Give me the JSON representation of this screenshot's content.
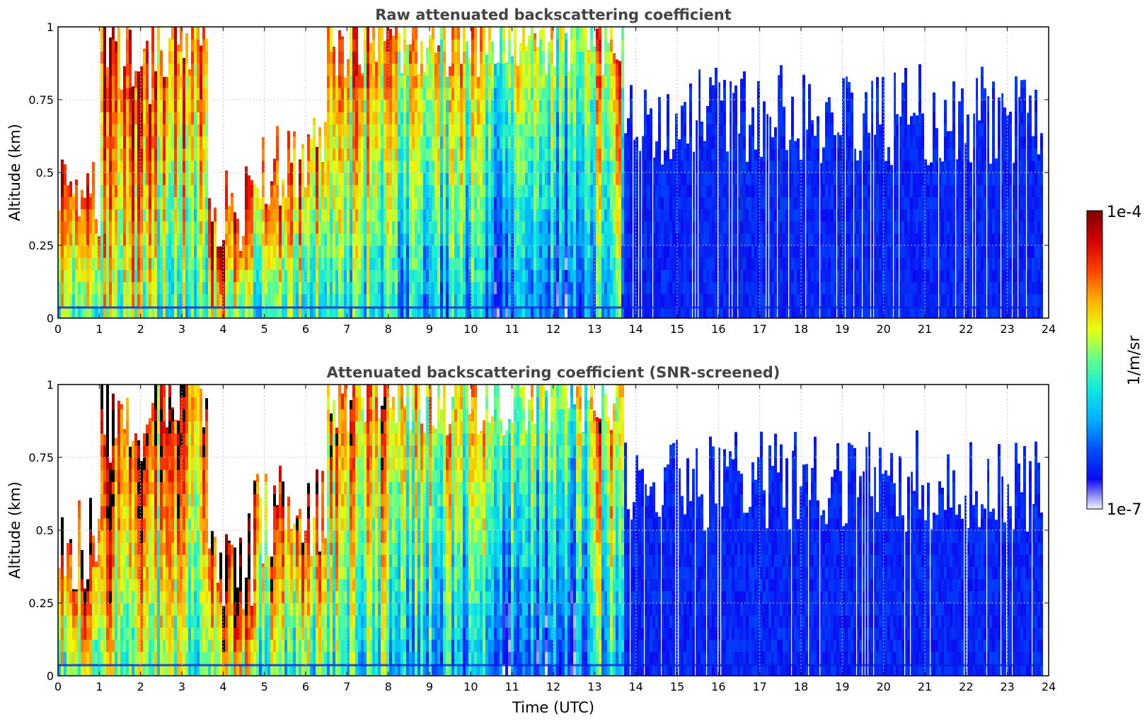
{
  "chart_data": [
    {
      "type": "heatmap",
      "title": "Raw attenuated backscattering coefficient",
      "xlabel": "",
      "ylabel": "Altitude (km)",
      "xlim": [
        0,
        24
      ],
      "ylim": [
        0,
        1
      ],
      "x_ticks": [
        "0",
        "1",
        "2",
        "3",
        "4",
        "5",
        "6",
        "7",
        "8",
        "9",
        "10",
        "11",
        "12",
        "13",
        "14",
        "15",
        "16",
        "17",
        "18",
        "19",
        "20",
        "21",
        "22",
        "23",
        "24"
      ],
      "y_ticks": [
        "0",
        "0.25",
        "0.5",
        "0.75",
        "1"
      ],
      "y_tick_values": [
        0,
        0.25,
        0.5,
        0.75,
        1
      ],
      "grid": true,
      "snr_screened": false,
      "segments": [
        {
          "t0": 0.0,
          "t1": 1.0,
          "top": 0.45,
          "level": 0.85
        },
        {
          "t0": 1.0,
          "t1": 2.3,
          "top": 0.9,
          "level": 0.9
        },
        {
          "t0": 2.3,
          "t1": 3.6,
          "top": 1.0,
          "level": 0.8
        },
        {
          "t0": 3.6,
          "t1": 4.7,
          "top": 0.4,
          "level": 0.95
        },
        {
          "t0": 4.7,
          "t1": 6.5,
          "top": 0.55,
          "level": 0.8
        },
        {
          "t0": 6.5,
          "t1": 8.0,
          "top": 1.0,
          "level": 0.75
        },
        {
          "t0": 8.0,
          "t1": 10.5,
          "top": 1.0,
          "level": 0.65
        },
        {
          "t0": 10.5,
          "t1": 12.8,
          "top": 1.0,
          "level": 0.55
        },
        {
          "t0": 12.8,
          "t1": 13.7,
          "top": 1.0,
          "level": 0.7
        },
        {
          "t0": 13.7,
          "t1": 24.0,
          "top": 0.7,
          "level": 0.12
        }
      ]
    },
    {
      "type": "heatmap",
      "title": "Attenuated backscattering coefficient (SNR-screened)",
      "xlabel": "Time (UTC)",
      "ylabel": "Altitude (km)",
      "xlim": [
        0,
        24
      ],
      "ylim": [
        0,
        1
      ],
      "x_ticks": [
        "0",
        "1",
        "2",
        "3",
        "4",
        "5",
        "6",
        "7",
        "8",
        "9",
        "10",
        "11",
        "12",
        "13",
        "14",
        "15",
        "16",
        "17",
        "18",
        "19",
        "20",
        "21",
        "22",
        "23",
        "24"
      ],
      "y_ticks": [
        "0",
        "0.25",
        "0.5",
        "0.75",
        "1"
      ],
      "y_tick_values": [
        0,
        0.25,
        0.5,
        0.75,
        1
      ],
      "grid": true,
      "snr_screened": true,
      "segments": [
        {
          "t0": 0.0,
          "t1": 1.0,
          "top": 0.45,
          "level": 0.85
        },
        {
          "t0": 1.0,
          "t1": 2.3,
          "top": 0.9,
          "level": 0.9
        },
        {
          "t0": 2.3,
          "t1": 3.6,
          "top": 1.0,
          "level": 0.8
        },
        {
          "t0": 3.6,
          "t1": 4.7,
          "top": 0.4,
          "level": 0.95
        },
        {
          "t0": 4.7,
          "t1": 6.5,
          "top": 0.55,
          "level": 0.8
        },
        {
          "t0": 6.5,
          "t1": 8.0,
          "top": 1.0,
          "level": 0.75
        },
        {
          "t0": 8.0,
          "t1": 10.5,
          "top": 1.0,
          "level": 0.65
        },
        {
          "t0": 10.5,
          "t1": 12.8,
          "top": 1.0,
          "level": 0.55
        },
        {
          "t0": 12.8,
          "t1": 13.7,
          "top": 1.0,
          "level": 0.7
        },
        {
          "t0": 13.7,
          "t1": 24.0,
          "top": 0.67,
          "level": 0.12
        }
      ]
    }
  ],
  "colorbar": {
    "label": "1/m/sr",
    "max_label": "1e-4",
    "min_label": "1e-7",
    "scale": "log",
    "colors": [
      "#f4f4ff",
      "#0a0af0",
      "#0050ff",
      "#00b0ff",
      "#10e8e0",
      "#60ff90",
      "#e8ff10",
      "#ffb000",
      "#ff4000",
      "#d00000",
      "#800000"
    ]
  },
  "colors": {
    "axis": "#000000",
    "grid": "#c8c8c8",
    "title": "#444444"
  }
}
